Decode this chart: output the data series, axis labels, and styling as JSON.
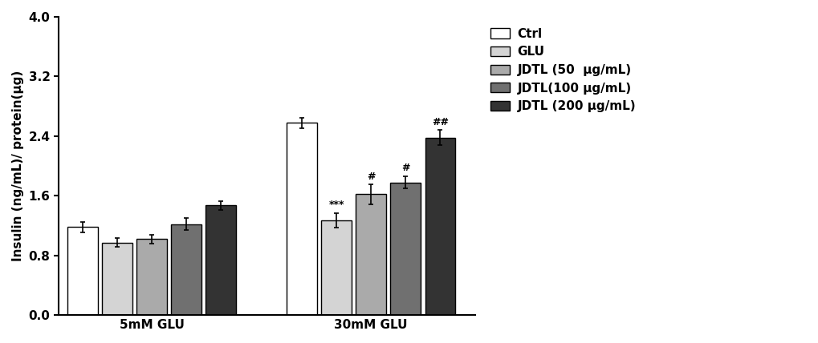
{
  "categories": [
    "Ctrl",
    "GLU",
    "JDTL (50  μg/mL)",
    "JDTL(100 μg/mL)",
    "JDTL (200 μg/mL)"
  ],
  "bar_colors": [
    "#ffffff",
    "#d4d4d4",
    "#aaaaaa",
    "#707070",
    "#333333"
  ],
  "bar_edgecolor": "#000000",
  "values_5mM": [
    1.18,
    0.97,
    1.02,
    1.22,
    1.47
  ],
  "errors_5mM": [
    0.07,
    0.06,
    0.06,
    0.08,
    0.06
  ],
  "values_30mM": [
    2.58,
    1.27,
    1.62,
    1.78,
    2.38
  ],
  "errors_30mM": [
    0.07,
    0.1,
    0.13,
    0.08,
    0.1
  ],
  "ylim": [
    0.0,
    4.0
  ],
  "yticks": [
    0.0,
    0.8,
    1.6,
    2.4,
    3.2,
    4.0
  ],
  "ylabel": "Insulin (ng/mL)/ protein(μg)",
  "xlabel_groups": [
    "5mM GLU",
    "30mM GLU"
  ],
  "legend_labels": [
    "Ctrl",
    "GLU",
    "JDTL (50  μg/mL)",
    "JDTL(100 μg/mL)",
    "JDTL (200 μg/mL)"
  ],
  "sig_5mM": [
    "",
    "",
    "",
    "",
    ""
  ],
  "sig_30mM": [
    "",
    "***",
    "#",
    "#",
    "##"
  ],
  "bar_width": 0.055,
  "group_centers": [
    0.22,
    0.62
  ]
}
